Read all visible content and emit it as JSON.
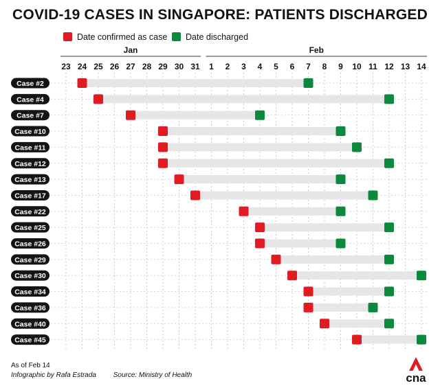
{
  "page": {
    "title": "COVID-19 CASES IN SINGAPORE: PATIENTS DISCHARGED",
    "as_of": "As of Feb 14",
    "credit": "Infographic by Rafa Estrada",
    "source": "Source: Ministry of Health",
    "logo_text": "cna"
  },
  "chart_data": {
    "type": "table",
    "title": "COVID-19 CASES IN SINGAPORE: PATIENTS DISCHARGED",
    "legend": [
      {
        "name": "Date confirmed as case",
        "color": "#e01b22"
      },
      {
        "name": "Date discharged",
        "color": "#0b8a3e"
      }
    ],
    "legend_position": "top",
    "months": [
      {
        "label": "Jan",
        "from": 23,
        "to": 31
      },
      {
        "label": "Feb",
        "from": 1,
        "to": 14
      }
    ],
    "x_ticks": [
      "23",
      "24",
      "25",
      "26",
      "27",
      "28",
      "29",
      "30",
      "31",
      "1",
      "2",
      "3",
      "4",
      "5",
      "6",
      "7",
      "8",
      "9",
      "10",
      "11",
      "12",
      "13",
      "14"
    ],
    "grid": true,
    "rows": [
      {
        "case": "Case #2",
        "confirmed": "Jan 24",
        "discharged": "Feb 7"
      },
      {
        "case": "Case #4",
        "confirmed": "Jan 25",
        "discharged": "Feb 12"
      },
      {
        "case": "Case #7",
        "confirmed": "Jan 27",
        "discharged": "Feb 4"
      },
      {
        "case": "Case #10",
        "confirmed": "Jan 29",
        "discharged": "Feb 9"
      },
      {
        "case": "Case #11",
        "confirmed": "Jan 29",
        "discharged": "Feb 10"
      },
      {
        "case": "Case #12",
        "confirmed": "Jan 29",
        "discharged": "Feb 12"
      },
      {
        "case": "Case #13",
        "confirmed": "Jan 30",
        "discharged": "Feb 9"
      },
      {
        "case": "Case #17",
        "confirmed": "Jan 31",
        "discharged": "Feb 11"
      },
      {
        "case": "Case #22",
        "confirmed": "Feb 3",
        "discharged": "Feb 9"
      },
      {
        "case": "Case #25",
        "confirmed": "Feb 4",
        "discharged": "Feb 12"
      },
      {
        "case": "Case #26",
        "confirmed": "Feb 4",
        "discharged": "Feb 9"
      },
      {
        "case": "Case #29",
        "confirmed": "Feb 5",
        "discharged": "Feb 12"
      },
      {
        "case": "Case #30",
        "confirmed": "Feb 6",
        "discharged": "Feb 14"
      },
      {
        "case": "Case #34",
        "confirmed": "Feb 7",
        "discharged": "Feb 12"
      },
      {
        "case": "Case #36",
        "confirmed": "Feb 7",
        "discharged": "Feb 11"
      },
      {
        "case": "Case #40",
        "confirmed": "Feb 8",
        "discharged": "Feb 12"
      },
      {
        "case": "Case #45",
        "confirmed": "Feb 10",
        "discharged": "Feb 14"
      }
    ]
  }
}
